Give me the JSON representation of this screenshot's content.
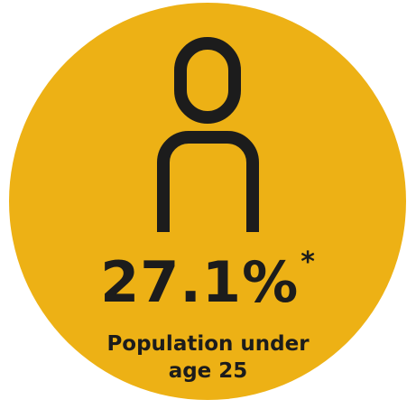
{
  "colors": {
    "circle_fill": "#EDB115",
    "ink": "#1c1c1c"
  },
  "icon": "person-outline-icon",
  "stat": {
    "value": "27.1%",
    "footnote_marker": "*",
    "label_line1": "Population under",
    "label_line2": "age 25"
  }
}
